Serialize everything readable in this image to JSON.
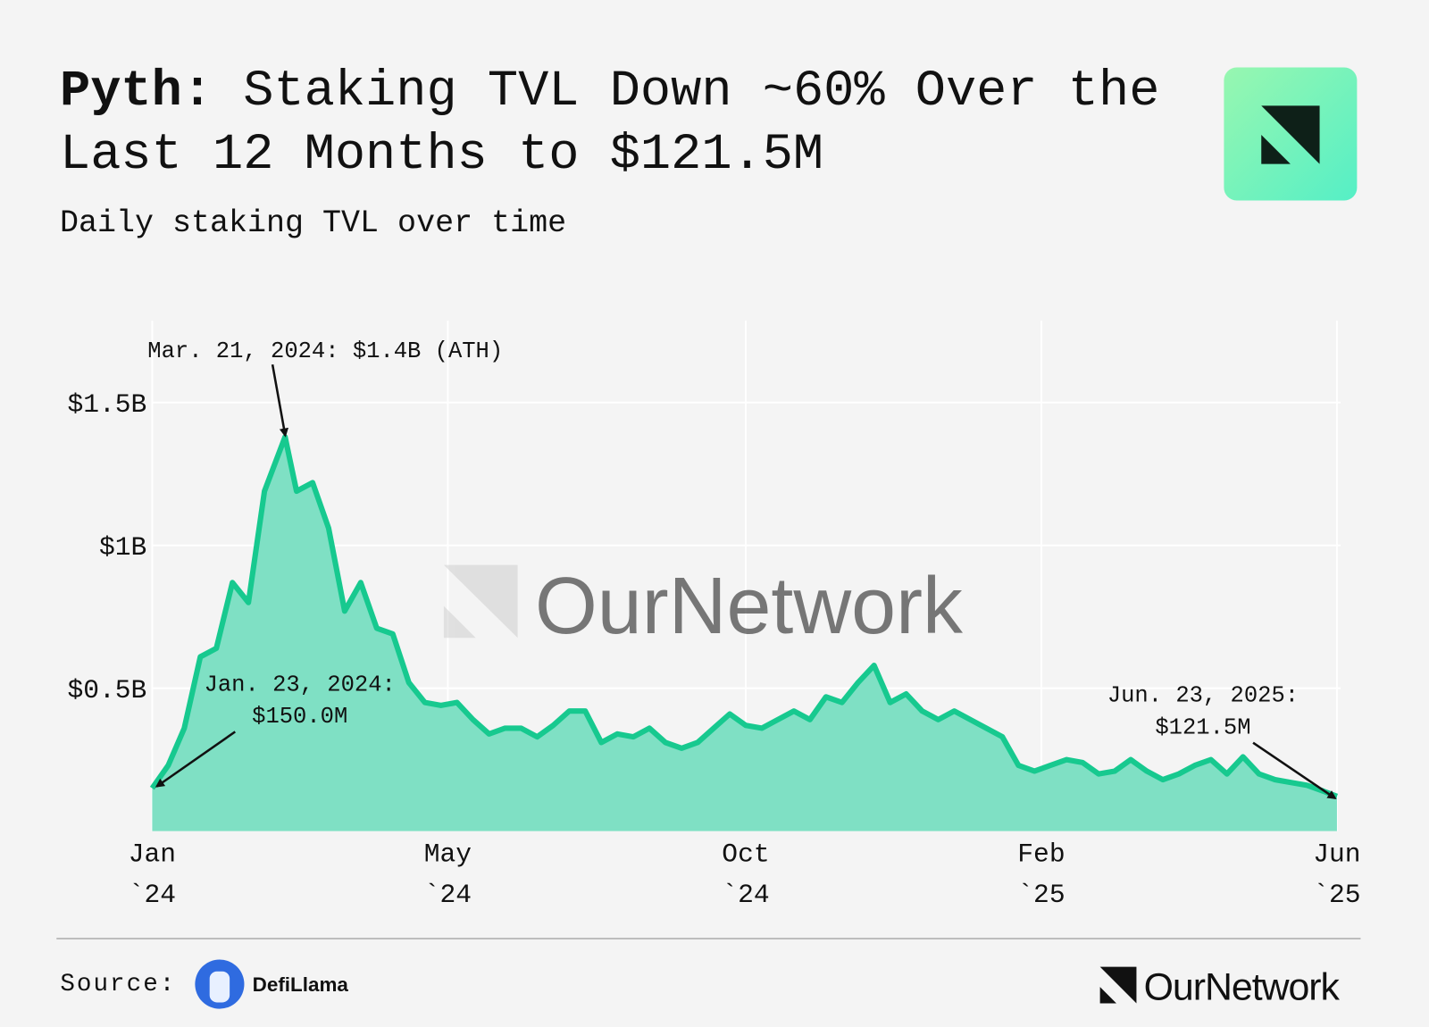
{
  "chart_data": {
    "type": "area",
    "title_lead": "Pyth:",
    "title": "Staking TVL Down ~60% Over the Last 12 Months to $121.5M",
    "subtitle": "Daily staking TVL over time",
    "x": [
      "2024-01-23",
      "2024-01-30",
      "2024-02-06",
      "2024-02-13",
      "2024-02-20",
      "2024-02-27",
      "2024-03-05",
      "2024-03-12",
      "2024-03-21",
      "2024-03-26",
      "2024-04-02",
      "2024-04-09",
      "2024-04-16",
      "2024-04-23",
      "2024-04-30",
      "2024-05-07",
      "2024-05-14",
      "2024-05-21",
      "2024-05-28",
      "2024-06-04",
      "2024-06-11",
      "2024-06-18",
      "2024-06-25",
      "2024-07-02",
      "2024-07-09",
      "2024-07-16",
      "2024-07-23",
      "2024-07-30",
      "2024-08-06",
      "2024-08-13",
      "2024-08-20",
      "2024-08-27",
      "2024-09-03",
      "2024-09-10",
      "2024-09-17",
      "2024-09-24",
      "2024-10-01",
      "2024-10-08",
      "2024-10-15",
      "2024-10-22",
      "2024-10-29",
      "2024-11-05",
      "2024-11-12",
      "2024-11-19",
      "2024-11-26",
      "2024-12-03",
      "2024-12-10",
      "2024-12-17",
      "2024-12-24",
      "2024-12-31",
      "2025-01-07",
      "2025-01-14",
      "2025-01-21",
      "2025-01-28",
      "2025-02-04",
      "2025-02-11",
      "2025-02-18",
      "2025-02-25",
      "2025-03-04",
      "2025-03-11",
      "2025-03-18",
      "2025-03-25",
      "2025-04-01",
      "2025-04-08",
      "2025-04-15",
      "2025-04-22",
      "2025-04-29",
      "2025-05-06",
      "2025-05-13",
      "2025-05-20",
      "2025-05-27",
      "2025-06-03",
      "2025-06-10",
      "2025-06-17",
      "2025-06-23"
    ],
    "series": [
      {
        "color": "#17c98f",
        "fill": "#7fe0c4",
        "values": [
          0.15,
          0.23,
          0.36,
          0.61,
          0.64,
          0.87,
          0.8,
          1.19,
          1.38,
          1.19,
          1.22,
          1.06,
          0.77,
          0.87,
          0.71,
          0.69,
          0.52,
          0.45,
          0.44,
          0.45,
          0.39,
          0.34,
          0.36,
          0.36,
          0.33,
          0.37,
          0.42,
          0.42,
          0.31,
          0.34,
          0.33,
          0.36,
          0.31,
          0.29,
          0.31,
          0.36,
          0.41,
          0.37,
          0.36,
          0.39,
          0.42,
          0.39,
          0.47,
          0.45,
          0.52,
          0.58,
          0.45,
          0.48,
          0.42,
          0.39,
          0.42,
          0.39,
          0.36,
          0.33,
          0.23,
          0.21,
          0.23,
          0.25,
          0.24,
          0.2,
          0.21,
          0.25,
          0.21,
          0.18,
          0.2,
          0.23,
          0.25,
          0.2,
          0.26,
          0.2,
          0.18,
          0.17,
          0.16,
          0.14,
          0.1215
        ]
      }
    ],
    "xlim": [
      "2024-01-23",
      "2025-06-23"
    ],
    "xticks": [
      {
        "value": "2024-01-23",
        "label": "Jan\n`24"
      },
      {
        "value": "2024-05-31",
        "label": "May\n`24"
      },
      {
        "value": "2024-10-08",
        "label": "Oct\n`24"
      },
      {
        "value": "2025-02-14",
        "label": "Feb\n`25"
      },
      {
        "value": "2025-06-23",
        "label": "Jun\n`25"
      }
    ],
    "ylim": [
      0,
      1.78
    ],
    "yticks": [
      {
        "value": 0.5,
        "label": "$0.5B"
      },
      {
        "value": 1,
        "label": "$1B"
      },
      {
        "value": 1.5,
        "label": "$1.5B"
      }
    ],
    "grid": true,
    "annotations": [
      {
        "text": [
          "Mar. 21, 2024: $1.4B (ATH)"
        ]
      },
      {
        "text": [
          "Jan. 23, 2024:",
          "$150.0M"
        ]
      },
      {
        "text": [
          "Jun. 23, 2025:",
          "$121.5M"
        ]
      }
    ]
  },
  "watermark": "OurNetwork",
  "footer": {
    "source_label": "Source:",
    "source": "DefiLlama",
    "brand": "OurNetwork"
  }
}
